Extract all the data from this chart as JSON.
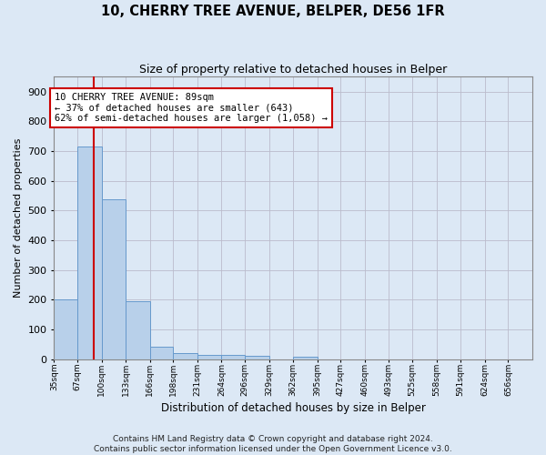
{
  "title": "10, CHERRY TREE AVENUE, BELPER, DE56 1FR",
  "subtitle": "Size of property relative to detached houses in Belper",
  "xlabel": "Distribution of detached houses by size in Belper",
  "ylabel": "Number of detached properties",
  "bar_edges": [
    35,
    67,
    100,
    133,
    166,
    198,
    231,
    264,
    296,
    329,
    362,
    395,
    427,
    460,
    493,
    525,
    558,
    591,
    624,
    656,
    689
  ],
  "bar_heights": [
    200,
    714,
    536,
    193,
    42,
    20,
    15,
    13,
    10,
    0,
    9,
    0,
    0,
    0,
    0,
    0,
    0,
    0,
    0,
    0
  ],
  "bar_color": "#b8d0ea",
  "bar_edgecolor": "#6699cc",
  "bar_linewidth": 0.7,
  "grid_color": "#bbbbcc",
  "property_line_x": 89,
  "property_line_color": "#cc0000",
  "annotation_text": "10 CHERRY TREE AVENUE: 89sqm\n← 37% of detached houses are smaller (643)\n62% of semi-detached houses are larger (1,058) →",
  "annotation_box_facecolor": "#ffffff",
  "annotation_box_edgecolor": "#cc0000",
  "ylim": [
    0,
    950
  ],
  "yticks": [
    0,
    100,
    200,
    300,
    400,
    500,
    600,
    700,
    800,
    900
  ],
  "footer_line1": "Contains HM Land Registry data © Crown copyright and database right 2024.",
  "footer_line2": "Contains public sector information licensed under the Open Government Licence v3.0.",
  "bg_color": "#dce8f5",
  "plot_bg_color": "#dce8f5",
  "title_fontsize": 10.5,
  "subtitle_fontsize": 9,
  "ylabel_fontsize": 8,
  "xlabel_fontsize": 8.5,
  "ytick_fontsize": 8,
  "xtick_fontsize": 6.5,
  "annot_fontsize": 7.5,
  "footer_fontsize": 6.5
}
